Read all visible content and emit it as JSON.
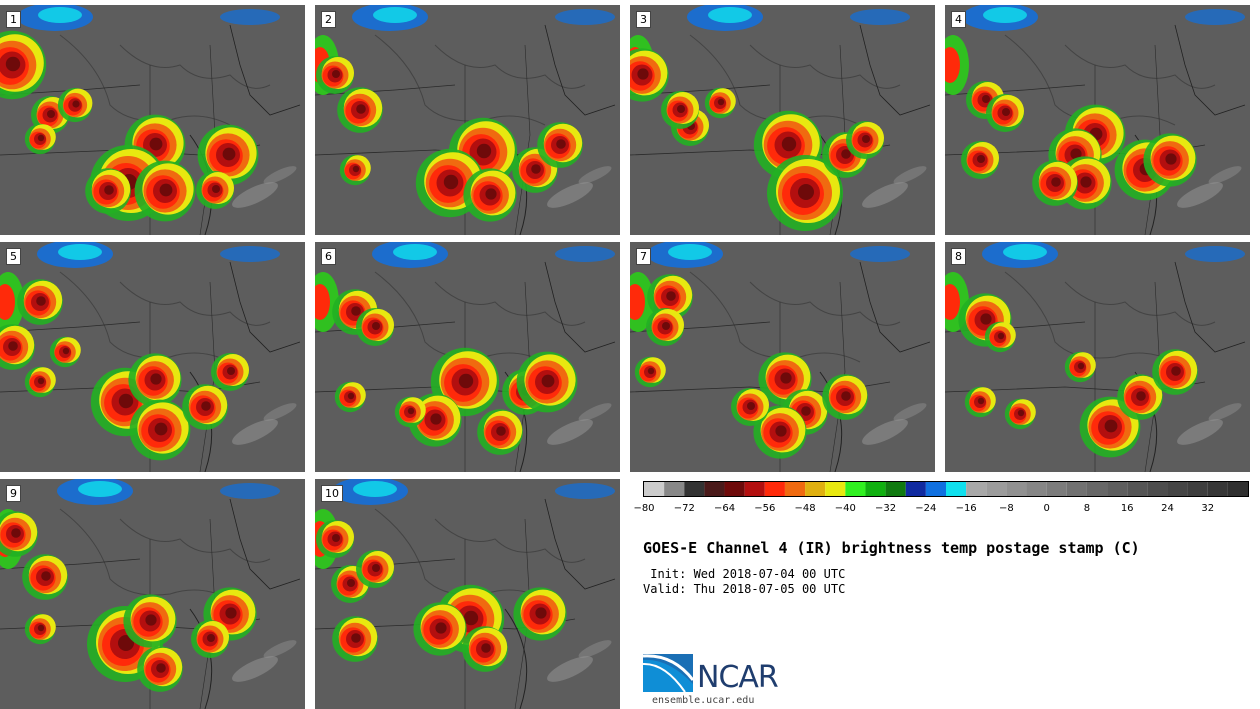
{
  "panels": [
    {
      "label": "1"
    },
    {
      "label": "2"
    },
    {
      "label": "3"
    },
    {
      "label": "4"
    },
    {
      "label": "5"
    },
    {
      "label": "6"
    },
    {
      "label": "7"
    },
    {
      "label": "8"
    },
    {
      "label": "9"
    },
    {
      "label": "10"
    }
  ],
  "colorbar": {
    "colors": [
      "#cccccc",
      "#888888",
      "#333333",
      "#4a1a1a",
      "#6e0a0a",
      "#b30f0f",
      "#ff2a0a",
      "#f06a10",
      "#e0b010",
      "#e8e810",
      "#30f020",
      "#10b010",
      "#107a10",
      "#102aa0",
      "#1070e0",
      "#10e0ee",
      "#a8a8a8",
      "#9c9c9c",
      "#919191",
      "#868686",
      "#7c7c7c",
      "#717171",
      "#676767",
      "#5e5e5e",
      "#555555",
      "#4d4d4d",
      "#454545",
      "#3e3e3e",
      "#373737",
      "#303030"
    ],
    "tick_labels": [
      "−80",
      "−72",
      "−64",
      "−56",
      "−48",
      "−40",
      "−32",
      "−24",
      "−16",
      "−8",
      "0",
      "8",
      "16",
      "24",
      "32"
    ]
  },
  "title": "GOES-E Channel 4 (IR) brightness temp postage stamp (C)",
  "init": " Init: Wed 2018-07-04 00 UTC",
  "valid": "Valid: Thu 2018-07-05 00 UTC",
  "logo": {
    "text": "NCAR",
    "url": "ensemble.ucar.edu"
  }
}
